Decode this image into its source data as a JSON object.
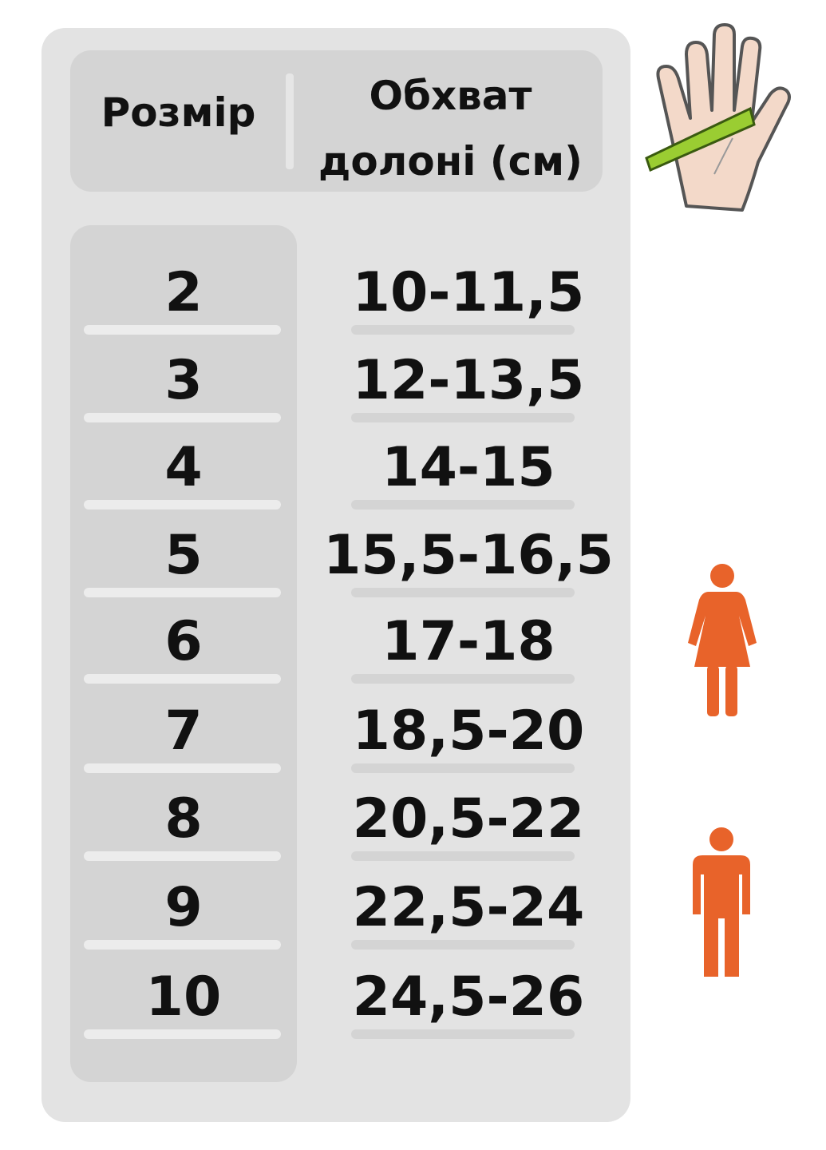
{
  "table": {
    "headers": [
      "Розмір",
      "Обхват долоні (см)"
    ],
    "header_lines": [
      "Обхват",
      "долоні (см)"
    ],
    "rows": [
      {
        "size": "2",
        "palm_girth_cm": "10-11,5"
      },
      {
        "size": "3",
        "palm_girth_cm": "12-13,5"
      },
      {
        "size": "4",
        "palm_girth_cm": "14-15"
      },
      {
        "size": "5",
        "palm_girth_cm": "15,5-16,5"
      },
      {
        "size": "6",
        "palm_girth_cm": "17-18"
      },
      {
        "size": "7",
        "palm_girth_cm": "18,5-20"
      },
      {
        "size": "8",
        "palm_girth_cm": "20,5-22"
      },
      {
        "size": "9",
        "palm_girth_cm": "22,5-24"
      },
      {
        "size": "10",
        "palm_girth_cm": "24,5-26"
      }
    ]
  },
  "icons": [
    "hand-measure-icon",
    "female-icon",
    "male-icon"
  ],
  "colors": {
    "accent": "#e8632a",
    "panel": "#e3e3e3",
    "box": "#d4d4d4",
    "tape": "#9acd32"
  }
}
